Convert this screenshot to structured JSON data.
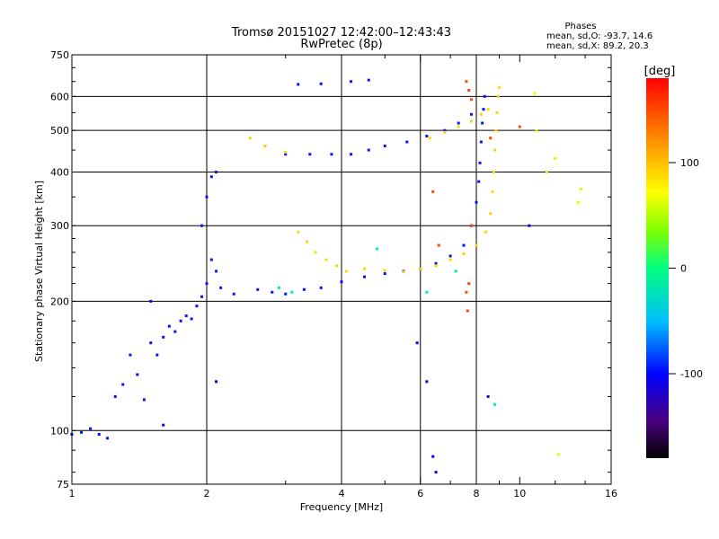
{
  "chart_data": {
    "type": "scatter",
    "title": "Tromsø 20151027 12:42:00–12:43:43",
    "subtitle": "RwPretec (8p)",
    "xlabel": "Frequency [MHz]",
    "ylabel": "Stationary phase Virtual Height [km]",
    "x_scale": "log",
    "y_scale": "log",
    "xlim": [
      1,
      16
    ],
    "ylim": [
      75,
      750
    ],
    "x_ticks": [
      1,
      2,
      4,
      6,
      8,
      10,
      16
    ],
    "y_ticks": [
      75,
      100,
      200,
      300,
      400,
      500,
      600,
      750
    ],
    "grid_x": [
      2,
      4,
      6,
      8
    ],
    "grid_y": [
      100,
      200,
      300,
      400,
      500,
      600
    ],
    "grid": true,
    "phases": {
      "title": "Phases",
      "line_o": "mean, sd,O: -93.7, 14.6",
      "line_x": "mean, sd,X:  89.2, 20.3"
    },
    "colorbar": {
      "label": "[deg]",
      "ticks": [
        100,
        0,
        -100
      ],
      "range": [
        -180,
        180
      ]
    },
    "series": [
      {
        "points": [
          [
            1.0,
            98
          ],
          [
            1.05,
            99
          ],
          [
            1.1,
            101
          ],
          [
            1.15,
            98
          ],
          [
            1.2,
            96
          ],
          [
            1.25,
            120
          ],
          [
            1.3,
            128
          ],
          [
            1.35,
            150
          ],
          [
            1.4,
            135
          ],
          [
            1.45,
            118
          ],
          [
            1.5,
            160
          ],
          [
            1.55,
            150
          ],
          [
            1.6,
            165
          ],
          [
            1.65,
            175
          ],
          [
            1.7,
            170
          ],
          [
            1.75,
            180
          ],
          [
            1.8,
            185
          ],
          [
            1.85,
            182
          ],
          [
            1.9,
            195
          ],
          [
            1.95,
            205
          ],
          [
            2.0,
            220
          ],
          [
            2.05,
            250
          ],
          [
            2.1,
            235
          ],
          [
            2.15,
            215
          ],
          [
            2.3,
            208
          ],
          [
            2.6,
            213
          ],
          [
            2.8,
            210
          ],
          [
            3.0,
            208
          ],
          [
            3.3,
            213
          ],
          [
            3.6,
            215
          ],
          [
            4.0,
            222
          ],
          [
            1.95,
            300
          ],
          [
            2.0,
            350
          ],
          [
            2.05,
            390
          ],
          [
            2.1,
            400
          ],
          [
            2.7,
            460
          ],
          [
            3.0,
            440
          ],
          [
            3.4,
            440
          ],
          [
            3.8,
            440
          ],
          [
            4.2,
            440
          ],
          [
            4.6,
            450
          ],
          [
            5.0,
            460
          ],
          [
            5.6,
            470
          ],
          [
            6.2,
            485
          ],
          [
            6.8,
            500
          ],
          [
            7.3,
            520
          ],
          [
            7.8,
            545
          ],
          [
            3.2,
            640
          ],
          [
            3.6,
            642
          ],
          [
            4.2,
            650
          ],
          [
            4.6,
            655
          ],
          [
            4.5,
            228
          ],
          [
            5.0,
            232
          ],
          [
            5.5,
            235
          ],
          [
            6.0,
            238
          ],
          [
            6.5,
            245
          ],
          [
            7.0,
            255
          ],
          [
            7.5,
            270
          ],
          [
            7.8,
            300
          ],
          [
            8.0,
            340
          ],
          [
            8.1,
            380
          ],
          [
            8.15,
            420
          ],
          [
            8.2,
            470
          ],
          [
            8.25,
            520
          ],
          [
            8.3,
            560
          ],
          [
            8.35,
            600
          ]
        ],
        "phase": -95
      },
      {
        "points": [
          [
            3.2,
            290
          ],
          [
            3.35,
            275
          ],
          [
            3.5,
            260
          ],
          [
            3.7,
            250
          ],
          [
            3.9,
            242
          ],
          [
            4.1,
            235
          ],
          [
            4.5,
            238
          ],
          [
            5.0,
            236
          ],
          [
            5.5,
            234
          ],
          [
            6.0,
            238
          ],
          [
            6.5,
            242
          ],
          [
            7.0,
            250
          ],
          [
            7.5,
            258
          ],
          [
            8.0,
            270
          ],
          [
            8.4,
            290
          ],
          [
            8.6,
            320
          ],
          [
            8.7,
            360
          ],
          [
            8.75,
            400
          ],
          [
            8.8,
            450
          ],
          [
            8.85,
            500
          ],
          [
            8.9,
            550
          ],
          [
            8.95,
            600
          ],
          [
            9.0,
            630
          ],
          [
            6.3,
            480
          ],
          [
            6.8,
            495
          ],
          [
            7.3,
            510
          ],
          [
            7.8,
            525
          ],
          [
            8.2,
            545
          ],
          [
            8.5,
            560
          ],
          [
            2.5,
            480
          ],
          [
            2.7,
            460
          ],
          [
            3.0,
            445
          ]
        ],
        "phase": 90
      },
      {
        "points": [
          [
            7.6,
            650
          ],
          [
            7.7,
            620
          ],
          [
            7.8,
            590
          ],
          [
            7.7,
            220
          ],
          [
            7.6,
            210
          ],
          [
            7.65,
            190
          ],
          [
            7.8,
            300
          ],
          [
            6.4,
            360
          ],
          [
            6.6,
            270
          ],
          [
            8.6,
            480
          ],
          [
            10.0,
            510
          ]
        ],
        "phase": 150
      },
      {
        "points": [
          [
            10.8,
            610
          ],
          [
            10.9,
            500
          ],
          [
            11.5,
            400
          ],
          [
            12.0,
            430
          ],
          [
            13.7,
            365
          ],
          [
            13.5,
            340
          ],
          [
            12.2,
            88
          ]
        ],
        "phase": 60
      },
      {
        "points": [
          [
            5.9,
            160
          ],
          [
            6.2,
            130
          ],
          [
            6.4,
            87
          ],
          [
            6.5,
            80
          ],
          [
            8.5,
            120
          ],
          [
            10.5,
            300
          ],
          [
            2.1,
            130
          ],
          [
            1.5,
            200
          ],
          [
            1.6,
            103
          ]
        ],
        "phase": -110
      },
      {
        "points": [
          [
            4.8,
            265
          ],
          [
            6.2,
            210
          ],
          [
            7.2,
            235
          ],
          [
            2.9,
            215
          ],
          [
            3.1,
            210
          ],
          [
            8.8,
            115
          ]
        ],
        "phase": -10
      }
    ]
  }
}
